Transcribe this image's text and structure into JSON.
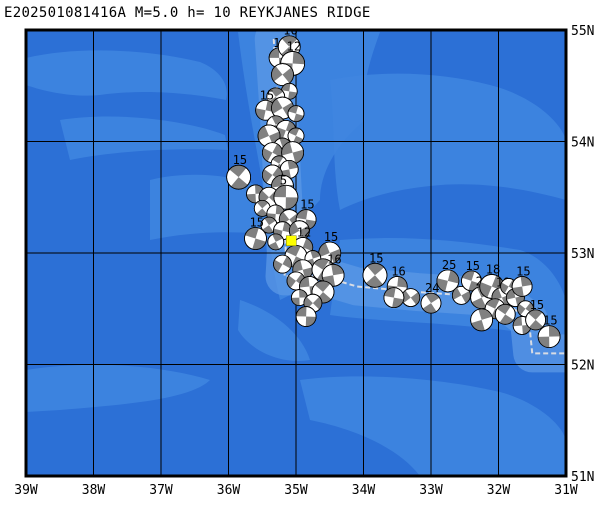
{
  "title": "E202501081416A M=5.0 h= 10 REYKJANES RIDGE",
  "map": {
    "lon_range": [
      -39,
      -31
    ],
    "lat_range": [
      51,
      55
    ],
    "lon_labels": [
      "39W",
      "38W",
      "37W",
      "36W",
      "35W",
      "34W",
      "33W",
      "32W",
      "31W"
    ],
    "lat_labels": [
      "55N",
      "54N",
      "53N",
      "52N",
      "51N"
    ],
    "colors": {
      "ocean": "#2c70d6",
      "ocean_shallow": "#3f86e0",
      "ridge": "#5b98e6",
      "grid": "#000000",
      "frame": "#000000",
      "plate_boundary": "#d8dce4",
      "epicenter": "#ffff00",
      "beachball_dark": "#808080",
      "beachball_light": "#ffffff"
    },
    "epicenter": {
      "lon": -35.07,
      "lat": 53.11
    },
    "plate_boundary": [
      [
        -35.33,
        54.92
      ],
      [
        -35.25,
        54.2
      ],
      [
        -35.2,
        53.6
      ],
      [
        -35.15,
        53.0
      ],
      [
        -35.17,
        52.79
      ],
      [
        -34.6,
        52.79
      ],
      [
        -34.1,
        52.7
      ],
      [
        -33.2,
        52.65
      ],
      [
        -32.0,
        52.6
      ],
      [
        -31.55,
        52.4
      ],
      [
        -31.5,
        52.1
      ],
      [
        -31,
        52.1
      ]
    ]
  },
  "events": [
    {
      "lon": -35.25,
      "lat": 54.75,
      "label": "15"
    },
    {
      "lon": -35.1,
      "lat": 54.85,
      "label": "16"
    },
    {
      "lon": -35.05,
      "lat": 54.7,
      "label": "12"
    },
    {
      "lon": -35.2,
      "lat": 54.6,
      "label": ""
    },
    {
      "lon": -35.1,
      "lat": 54.45,
      "label": ""
    },
    {
      "lon": -35.3,
      "lat": 54.4,
      "label": ""
    },
    {
      "lon": -35.45,
      "lat": 54.28,
      "label": "15"
    },
    {
      "lon": -35.2,
      "lat": 54.3,
      "label": ""
    },
    {
      "lon": -35.0,
      "lat": 54.25,
      "label": ""
    },
    {
      "lon": -35.3,
      "lat": 54.15,
      "label": ""
    },
    {
      "lon": -35.15,
      "lat": 54.1,
      "label": ""
    },
    {
      "lon": -35.4,
      "lat": 54.05,
      "label": ""
    },
    {
      "lon": -35.0,
      "lat": 54.05,
      "label": ""
    },
    {
      "lon": -35.2,
      "lat": 53.95,
      "label": ""
    },
    {
      "lon": -35.35,
      "lat": 53.9,
      "label": ""
    },
    {
      "lon": -35.05,
      "lat": 53.9,
      "label": ""
    },
    {
      "lon": -35.25,
      "lat": 53.8,
      "label": ""
    },
    {
      "lon": -35.1,
      "lat": 53.75,
      "label": ""
    },
    {
      "lon": -35.35,
      "lat": 53.7,
      "label": ""
    },
    {
      "lon": -35.2,
      "lat": 53.6,
      "label": ""
    },
    {
      "lon": -35.85,
      "lat": 53.68,
      "label": "15"
    },
    {
      "lon": -35.6,
      "lat": 53.53,
      "label": ""
    },
    {
      "lon": -35.4,
      "lat": 53.5,
      "label": ""
    },
    {
      "lon": -35.15,
      "lat": 53.5,
      "label": "5"
    },
    {
      "lon": -35.5,
      "lat": 53.4,
      "label": ""
    },
    {
      "lon": -35.3,
      "lat": 53.35,
      "label": ""
    },
    {
      "lon": -35.1,
      "lat": 53.3,
      "label": ""
    },
    {
      "lon": -34.85,
      "lat": 53.3,
      "label": "15"
    },
    {
      "lon": -35.4,
      "lat": 53.25,
      "label": ""
    },
    {
      "lon": -35.2,
      "lat": 53.2,
      "label": ""
    },
    {
      "lon": -34.95,
      "lat": 53.2,
      "label": ""
    },
    {
      "lon": -35.6,
      "lat": 53.13,
      "label": "15"
    },
    {
      "lon": -35.3,
      "lat": 53.1,
      "label": ""
    },
    {
      "lon": -34.9,
      "lat": 53.05,
      "label": "12"
    },
    {
      "lon": -34.5,
      "lat": 53.0,
      "label": "15"
    },
    {
      "lon": -35.0,
      "lat": 52.97,
      "label": ""
    },
    {
      "lon": -34.75,
      "lat": 52.95,
      "label": ""
    },
    {
      "lon": -35.2,
      "lat": 52.9,
      "label": ""
    },
    {
      "lon": -34.9,
      "lat": 52.85,
      "label": ""
    },
    {
      "lon": -34.6,
      "lat": 52.85,
      "label": ""
    },
    {
      "lon": -34.45,
      "lat": 52.8,
      "label": "16"
    },
    {
      "lon": -35.0,
      "lat": 52.75,
      "label": ""
    },
    {
      "lon": -34.8,
      "lat": 52.7,
      "label": ""
    },
    {
      "lon": -34.6,
      "lat": 52.65,
      "label": ""
    },
    {
      "lon": -34.95,
      "lat": 52.6,
      "label": ""
    },
    {
      "lon": -34.75,
      "lat": 52.55,
      "label": ""
    },
    {
      "lon": -34.85,
      "lat": 52.43,
      "label": ""
    },
    {
      "lon": -33.83,
      "lat": 52.8,
      "label": "15"
    },
    {
      "lon": -33.5,
      "lat": 52.7,
      "label": "16"
    },
    {
      "lon": -33.3,
      "lat": 52.6,
      "label": ""
    },
    {
      "lon": -33.55,
      "lat": 52.6,
      "label": ""
    },
    {
      "lon": -33.0,
      "lat": 52.55,
      "label": "24"
    },
    {
      "lon": -32.75,
      "lat": 52.75,
      "label": "25"
    },
    {
      "lon": -32.55,
      "lat": 52.62,
      "label": ""
    },
    {
      "lon": -32.4,
      "lat": 52.75,
      "label": "15"
    },
    {
      "lon": -32.25,
      "lat": 52.6,
      "label": "23"
    },
    {
      "lon": -32.1,
      "lat": 52.7,
      "label": "18"
    },
    {
      "lon": -31.95,
      "lat": 52.6,
      "label": "18"
    },
    {
      "lon": -32.05,
      "lat": 52.5,
      "label": ""
    },
    {
      "lon": -32.25,
      "lat": 52.4,
      "label": ""
    },
    {
      "lon": -31.85,
      "lat": 52.7,
      "label": ""
    },
    {
      "lon": -31.75,
      "lat": 52.6,
      "label": ""
    },
    {
      "lon": -31.9,
      "lat": 52.45,
      "label": ""
    },
    {
      "lon": -31.65,
      "lat": 52.7,
      "label": "15"
    },
    {
      "lon": -31.6,
      "lat": 52.5,
      "label": ""
    },
    {
      "lon": -31.65,
      "lat": 52.35,
      "label": ""
    },
    {
      "lon": -31.45,
      "lat": 52.4,
      "label": "15"
    },
    {
      "lon": -31.25,
      "lat": 52.25,
      "label": "15"
    }
  ]
}
